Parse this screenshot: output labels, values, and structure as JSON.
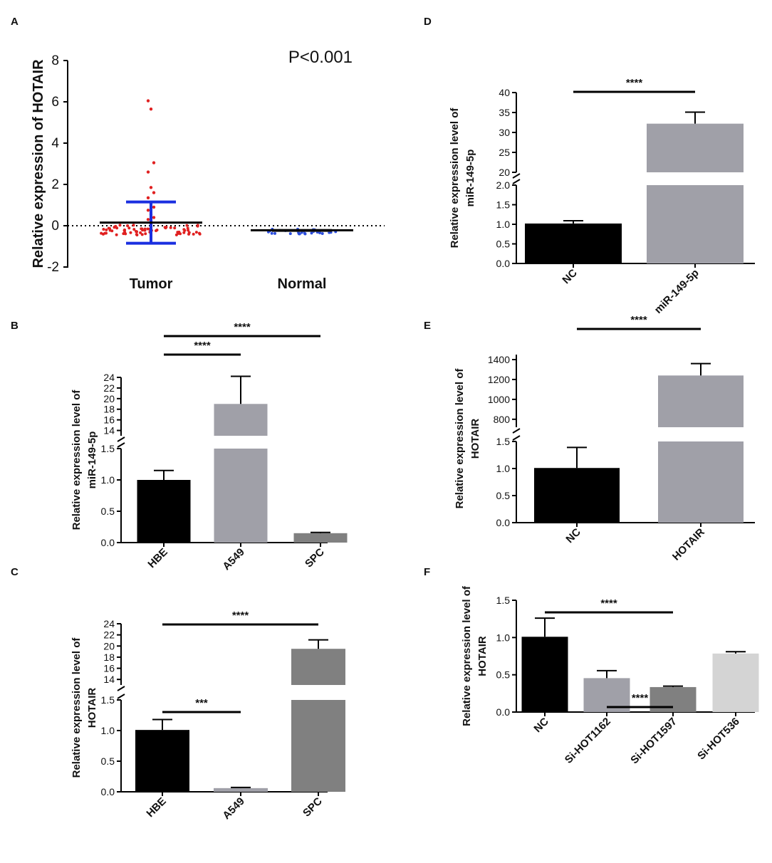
{
  "figure_type": "multi-panel bar and scatter charts",
  "chart_data": [
    {
      "panel": "A",
      "type": "scatter",
      "ylabel": "Relative expression of HOTAIR",
      "categories": [
        "Tumor",
        "Normal"
      ],
      "yticks": [
        "8",
        "6",
        "4",
        "2",
        "0",
        "-2"
      ],
      "ylim": [
        -2,
        8
      ],
      "annotation": "P<0.001",
      "series": [
        {
          "name": "Tumor",
          "mean": 0.15,
          "sd_low": -0.85,
          "sd_high": 1.15,
          "color": "#e02020",
          "outliers": [
            6.05,
            5.65,
            3.05,
            2.6,
            1.85,
            1.6,
            1.35,
            1.1,
            0.9,
            0.75,
            0.55,
            0.4,
            0.3,
            0.2
          ]
        },
        {
          "name": "Normal",
          "mean": -0.22,
          "sd_low": -0.3,
          "sd_high": -0.16,
          "color": "#2a4cdc"
        }
      ]
    },
    {
      "panel": "B",
      "type": "bar",
      "ylabel": [
        "Relative expression level of",
        "miR-149-5p"
      ],
      "categories": [
        "HBE",
        "A549",
        "SPC"
      ],
      "values": [
        1.0,
        19.0,
        0.15
      ],
      "errors": [
        0.15,
        5.2,
        0.01
      ],
      "colors": [
        "#000000",
        "#a0a0a8",
        "#808080"
      ],
      "lower_ticks": [
        "0.0",
        "0.5",
        "1.0",
        "1.5"
      ],
      "upper_ticks": [
        "14",
        "16",
        "18",
        "20",
        "22",
        "24"
      ],
      "broken_axis": {
        "lower": [
          0,
          1.5
        ],
        "upper": [
          13,
          24
        ]
      },
      "significance": [
        {
          "label": "****",
          "from": 0,
          "to": 1
        },
        {
          "label": "****",
          "from": 0,
          "to": 2
        }
      ]
    },
    {
      "panel": "C",
      "type": "bar",
      "ylabel": [
        "Relative expression level of",
        "HOTAIR"
      ],
      "categories": [
        "HBE",
        "A549",
        "SPC"
      ],
      "values": [
        1.01,
        0.06,
        19.5
      ],
      "errors": [
        0.17,
        0.01,
        1.6
      ],
      "colors": [
        "#000000",
        "#a0a0a8",
        "#808080"
      ],
      "lower_ticks": [
        "0.0",
        "0.5",
        "1.0",
        "1.5"
      ],
      "upper_ticks": [
        "14",
        "16",
        "18",
        "20",
        "22",
        "24"
      ],
      "broken_axis": {
        "lower": [
          0,
          1.5
        ],
        "upper": [
          13,
          24
        ]
      },
      "significance": [
        {
          "label": "***",
          "from": 0,
          "to": 1
        },
        {
          "label": "****",
          "from": 0,
          "to": 2
        }
      ]
    },
    {
      "panel": "D",
      "type": "bar",
      "ylabel": [
        "Relative expression level of",
        "miR-149-5p"
      ],
      "categories": [
        "NC",
        "miR-149-5p"
      ],
      "values": [
        1.02,
        32.2
      ],
      "errors": [
        0.07,
        2.9
      ],
      "colors": [
        "#000000",
        "#a0a0a8"
      ],
      "lower_ticks": [
        "0.0",
        "0.5",
        "1.0",
        "1.5",
        "2.0"
      ],
      "upper_ticks": [
        "20",
        "25",
        "30",
        "35",
        "40"
      ],
      "broken_axis": {
        "lower": [
          0,
          2
        ],
        "upper": [
          20,
          40
        ]
      },
      "significance": [
        {
          "label": "****",
          "from": 0,
          "to": 1
        }
      ]
    },
    {
      "panel": "E",
      "type": "bar",
      "ylabel": [
        "Relative expression level of",
        "HOTAIR"
      ],
      "categories": [
        "NC",
        "HOTAIR"
      ],
      "values": [
        1.01,
        1240
      ],
      "errors": [
        0.38,
        120
      ],
      "colors": [
        "#000000",
        "#a0a0a8"
      ],
      "lower_ticks": [
        "0.0",
        "0.5",
        "1.0",
        "1.5"
      ],
      "upper_ticks": [
        "800",
        "1000",
        "1200",
        "1400"
      ],
      "broken_axis": {
        "lower": [
          0,
          1.5
        ],
        "upper": [
          720,
          1450
        ]
      },
      "significance": [
        {
          "label": "****",
          "from": 0,
          "to": 1
        }
      ]
    },
    {
      "panel": "F",
      "type": "bar",
      "ylabel": [
        "Relative expression level of",
        "HOTAIR"
      ],
      "categories": [
        "NC",
        "Si-HOT1162",
        "Si-HOT1597",
        "Si-HOT536"
      ],
      "values": [
        1.01,
        0.455,
        0.335,
        0.785
      ],
      "errors": [
        0.25,
        0.1,
        0.012,
        0.025
      ],
      "colors": [
        "#000000",
        "#a0a0a8",
        "#808080",
        "#d4d4d4"
      ],
      "ticks": [
        "0.0",
        "0.5",
        "1.0",
        "1.5"
      ],
      "ylim": [
        0,
        1.5
      ],
      "significance": [
        {
          "label": "****",
          "from": 0,
          "to": 2
        },
        {
          "label": "****",
          "from": 1,
          "to": 2
        }
      ]
    }
  ]
}
